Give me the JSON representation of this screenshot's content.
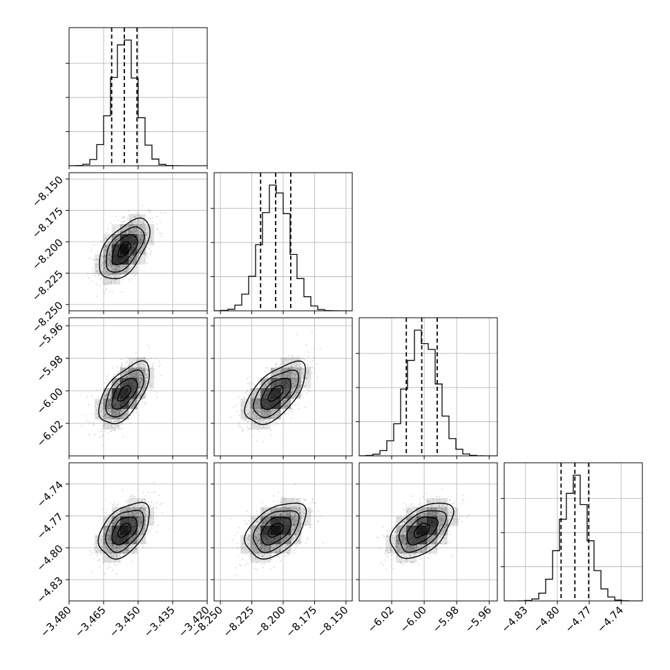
{
  "chart_data": {
    "type": "corner",
    "parameters": [
      {
        "range": [
          -3.48,
          -3.42
        ],
        "ticks": [
          "−3.480",
          "−3.465",
          "−3.450",
          "−3.435",
          "−3.420"
        ],
        "tick_values": [
          -3.48,
          -3.465,
          -3.45,
          -3.435,
          -3.42
        ],
        "mean": -3.456,
        "sigma": 0.0055,
        "quantiles": [
          -3.4615,
          -3.456,
          -3.4505
        ]
      },
      {
        "range": [
          -8.255,
          -8.145
        ],
        "ticks": [
          "−8.250",
          "−8.225",
          "−8.200",
          "−8.175",
          "−8.150"
        ],
        "tick_values": [
          -8.25,
          -8.225,
          -8.2,
          -8.175,
          -8.15
        ],
        "mean": -8.206,
        "sigma": 0.012,
        "quantiles": [
          -8.218,
          -8.206,
          -8.194
        ]
      },
      {
        "range": [
          -6.04,
          -5.955
        ],
        "ticks": [
          "−6.02",
          "−6.00",
          "−5.98",
          "−5.96"
        ],
        "tick_values": [
          -6.02,
          -6.0,
          -5.98,
          -5.96
        ],
        "mean": -6.0015,
        "sigma": 0.0095,
        "quantiles": [
          -6.011,
          -6.0015,
          -5.992
        ]
      },
      {
        "range": [
          -4.85,
          -4.72
        ],
        "ticks": [
          "−4.83",
          "−4.80",
          "−4.77",
          "−4.74"
        ],
        "tick_values": [
          -4.83,
          -4.8,
          -4.77,
          -4.74
        ],
        "mean": -4.7835,
        "sigma": 0.013,
        "quantiles": [
          -4.7965,
          -4.7835,
          -4.7705
        ]
      }
    ],
    "correlations": [
      [
        1,
        2,
        0.55
      ],
      [
        1,
        3,
        0.6
      ],
      [
        1,
        4,
        0.45
      ],
      [
        2,
        3,
        0.6
      ],
      [
        2,
        4,
        0.45
      ],
      [
        3,
        4,
        0.5
      ]
    ],
    "histogram_bins": 20,
    "grid": true,
    "colors": {
      "line": "#000000",
      "points": "#555555",
      "density": "#000000",
      "grid": "#b0b0b0"
    }
  }
}
